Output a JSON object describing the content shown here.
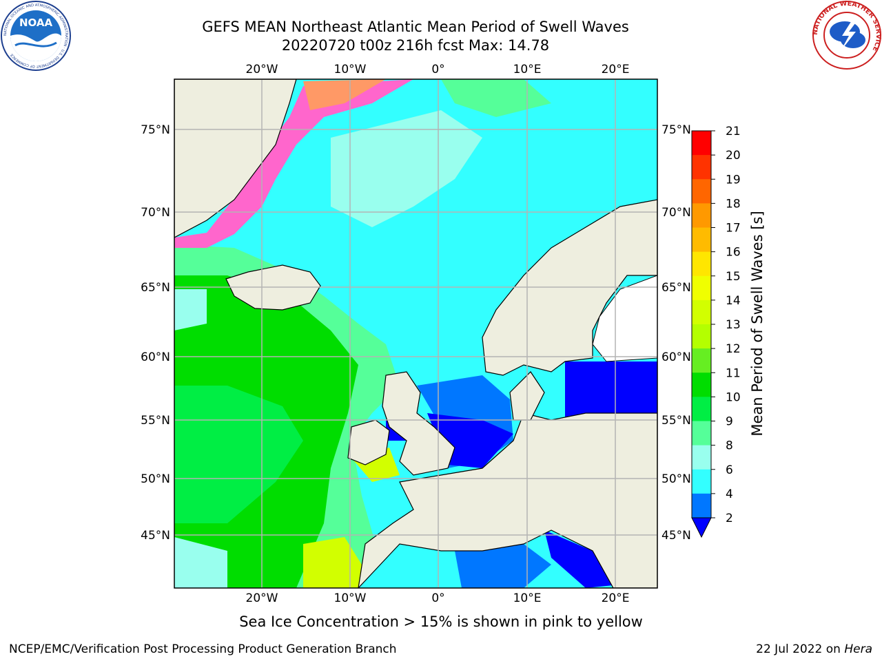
{
  "header": {
    "title_line1": "GEFS MEAN Northeast Atlantic Mean Period of Swell Waves",
    "title_line2": "20220720 t00z 216h fcst   Max: 14.78"
  },
  "logos": {
    "noaa_text": "NOAA",
    "noaa_ring": "NATIONAL OCEANIC AND ATMOSPHERIC ADMINISTRATION · U.S. DEPARTMENT OF COMMERCE",
    "nws_ring": "NATIONAL WEATHER SERVICE"
  },
  "map": {
    "lon_labels": [
      "20°W",
      "10°W",
      "0°",
      "10°E",
      "20°E"
    ],
    "lon_values": [
      -20,
      -10,
      0,
      10,
      20
    ],
    "lat_labels": [
      "75°N",
      "70°N",
      "65°N",
      "60°N",
      "55°N",
      "50°N",
      "45°N"
    ],
    "lat_values": [
      75,
      70,
      65,
      60,
      55,
      50,
      45
    ],
    "lon_range": [
      -30,
      24.5
    ],
    "lat_range": [
      41,
      78
    ],
    "projection": "polar-stereographic",
    "grid": true,
    "colors": {
      "land": "#eeeedf",
      "grid": "#b4b4b4",
      "coast": "#000000"
    }
  },
  "colorbar": {
    "label": "Mean Period of Swell Waves [s]",
    "ticks": [
      "21",
      "20",
      "19",
      "18",
      "17",
      "16",
      "15",
      "14",
      "13",
      "12",
      "11",
      "10",
      "9",
      "8",
      "6",
      "4",
      "2"
    ],
    "colors": [
      "#ff0000",
      "#ff3300",
      "#ff6600",
      "#ff9900",
      "#ffbb00",
      "#ffe600",
      "#f0ff00",
      "#d2ff00",
      "#b4ff00",
      "#66ee22",
      "#00dd00",
      "#00ee44",
      "#55ff99",
      "#99ffee",
      "#33ffff",
      "#00ddff",
      "#0077ff"
    ],
    "under_color": "#0000ff",
    "extend": "min"
  },
  "note": "Sea Ice Concentration > 15% is shown in pink to yellow",
  "footer": {
    "left": "NCEP/EMC/Verification Post Processing Product Generation Branch",
    "right_prefix": "22 Jul 2022 on ",
    "right_italic": "Hera"
  }
}
